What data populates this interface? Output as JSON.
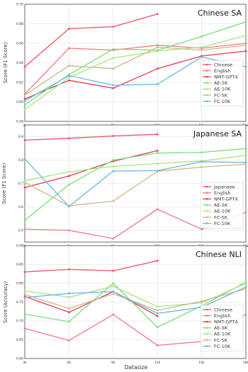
{
  "colors": {
    "Chinese": "#f0505f",
    "English": "#f07a84",
    "NMT-GPT4": "#e23a52",
    "AE-5K": "#78de7a",
    "AE-10K": "#a6e67c",
    "FC-5K": "#cfb58a",
    "FC-10K": "#6ab8e4"
  },
  "x_label": "Datasize",
  "chart_data": [
    {
      "type": "line",
      "title": "Chinese SA",
      "ylabel": "Score (F1 Score)",
      "xlabel": "Datasize",
      "x": [
        "3k",
        "6k",
        "9k",
        "12k",
        "15k",
        "18k"
      ],
      "ylim": [
        0.58,
        0.7
      ],
      "yticks": [
        "0.58",
        "0.60",
        "0.62",
        "0.64",
        "0.66",
        "0.68",
        "0.70"
      ],
      "legend_loc": "lower-right",
      "series": [
        {
          "name": "Chinese",
          "color_key": "Chinese",
          "values": [
            0.636,
            0.675,
            0.677,
            0.69,
            null,
            null
          ]
        },
        {
          "name": "English",
          "color_key": "English",
          "values": [
            0.608,
            0.655,
            0.653,
            0.658,
            0.655,
            0.66
          ]
        },
        {
          "name": "NMT-GPT4",
          "color_key": "NMT-GPT4",
          "values": [
            0.603,
            0.622,
            0.614,
            0.634,
            0.647,
            0.652
          ]
        },
        {
          "name": "AE-5K",
          "color_key": "AE-5K",
          "values": [
            0.597,
            0.628,
            0.654,
            0.653,
            0.667,
            0.682
          ]
        },
        {
          "name": "AE-10K",
          "color_key": "AE-10K",
          "values": [
            0.592,
            0.625,
            0.645,
            0.652,
            0.656,
            0.668
          ]
        },
        {
          "name": "FC-5K",
          "color_key": "FC-5K",
          "values": [
            0.607,
            0.637,
            0.634,
            0.656,
            0.653,
            0.658
          ]
        },
        {
          "name": "FC-10K",
          "color_key": "FC-10K",
          "values": [
            0.601,
            0.627,
            0.617,
            0.618,
            0.646,
            0.636
          ]
        }
      ]
    },
    {
      "type": "line",
      "title": "Japanese SA",
      "ylabel": "Score (F1 Score)",
      "xlabel": "Datasize",
      "x": [
        "3k",
        "6k",
        "9k",
        "12k",
        "15k",
        "18k"
      ],
      "ylim": [
        0.45,
        0.95
      ],
      "yticks": [
        "0.5",
        "0.6",
        "0.7",
        "0.8",
        "0.9"
      ],
      "legend_loc": "lower-right",
      "series": [
        {
          "name": "Japanese",
          "color_key": "Chinese",
          "values": [
            0.885,
            0.893,
            0.903,
            0.91,
            null,
            null
          ]
        },
        {
          "name": "English",
          "color_key": "English",
          "values": [
            0.505,
            0.5,
            0.465,
            0.59,
            0.505,
            0.577
          ]
        },
        {
          "name": "NMT-GPT4",
          "color_key": "NMT-GPT4",
          "values": [
            0.683,
            0.732,
            0.795,
            0.84,
            null,
            null
          ]
        },
        {
          "name": "AE-5K",
          "color_key": "AE-5K",
          "values": [
            0.543,
            0.695,
            0.8,
            0.83,
            0.833,
            0.849
          ]
        },
        {
          "name": "AE-10K",
          "color_key": "AE-10K",
          "values": [
            0.712,
            0.75,
            0.773,
            0.785,
            0.796,
            0.82
          ]
        },
        {
          "name": "FC-5K",
          "color_key": "FC-5K",
          "values": [
            0.705,
            0.605,
            0.625,
            0.752,
            0.77,
            0.783
          ]
        },
        {
          "name": "FC-10K",
          "color_key": "FC-10K",
          "values": [
            0.805,
            0.602,
            0.753,
            0.755,
            0.793,
            0.79
          ]
        }
      ]
    },
    {
      "type": "line",
      "title": "Chinese NLI",
      "ylabel": "Score (Accuracy)",
      "xlabel": "Datasize",
      "x": [
        "3k",
        "6k",
        "9k",
        "12k",
        "15k",
        "18k"
      ],
      "ylim": [
        0.6,
        0.9
      ],
      "yticks": [
        "0.60",
        "0.65",
        "0.70",
        "0.75",
        "0.80",
        "0.85",
        "0.90"
      ],
      "legend_loc": "lower-right",
      "series": [
        {
          "name": "Chinese",
          "color_key": "Chinese",
          "values": [
            0.83,
            0.837,
            0.833,
            0.86,
            null,
            null
          ]
        },
        {
          "name": "English",
          "color_key": "English",
          "values": [
            0.68,
            0.648,
            0.717,
            0.635,
            0.645,
            0.717
          ]
        },
        {
          "name": "NMT-GPT4",
          "color_key": "NMT-GPT4",
          "values": [
            0.765,
            0.723,
            0.778,
            0.713,
            null,
            null
          ]
        },
        {
          "name": "AE-5K",
          "color_key": "AE-5K",
          "values": [
            0.718,
            0.698,
            0.8,
            0.683,
            0.74,
            0.803
          ]
        },
        {
          "name": "AE-10K",
          "color_key": "AE-10K",
          "values": [
            0.78,
            0.763,
            0.792,
            0.738,
            0.748,
            0.8
          ]
        },
        {
          "name": "FC-5K",
          "color_key": "FC-5K",
          "values": [
            0.77,
            0.733,
            0.772,
            0.728,
            0.752,
            0.785
          ]
        },
        {
          "name": "FC-10K",
          "color_key": "FC-10K",
          "values": [
            0.762,
            0.773,
            0.778,
            0.72,
            0.736,
            0.79
          ]
        }
      ]
    }
  ]
}
